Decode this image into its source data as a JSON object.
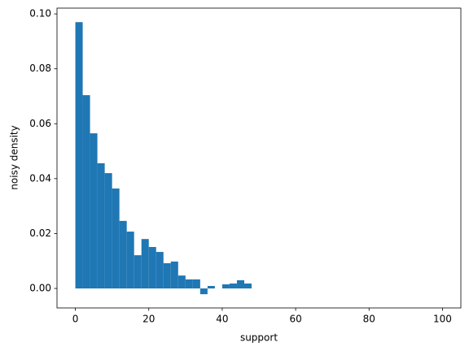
{
  "chart_data": {
    "type": "histogram",
    "xlabel": "support",
    "ylabel": "noisy density",
    "bins": [
      0,
      2,
      4,
      6,
      8,
      10,
      12,
      14,
      16,
      18,
      20,
      22,
      24,
      26,
      28,
      30,
      32,
      34,
      36,
      38,
      40,
      42,
      44,
      46,
      48
    ],
    "values": [
      0.097,
      0.0704,
      0.0565,
      0.0456,
      0.042,
      0.0364,
      0.0246,
      0.0207,
      0.0121,
      0.018,
      0.0151,
      0.0133,
      0.0092,
      0.0098,
      0.0047,
      0.0033,
      0.0033,
      -0.0021,
      0.0009,
      0,
      0.0015,
      0.0018,
      0.003,
      0.0018
    ],
    "color": "#1f77b4",
    "xlim": [
      -5,
      105
    ],
    "xticks": [
      0,
      20,
      40,
      60,
      80,
      100
    ],
    "ylim": [
      -0.0071,
      0.1021
    ],
    "yticks": [
      {
        "value": 0,
        "label": "0.00"
      },
      {
        "value": 0.02,
        "label": "0.02"
      },
      {
        "value": 0.04,
        "label": "0.04"
      },
      {
        "value": 0.06,
        "label": "0.06"
      },
      {
        "value": 0.08,
        "label": "0.08"
      },
      {
        "value": 0.1,
        "label": "0.10"
      }
    ]
  }
}
